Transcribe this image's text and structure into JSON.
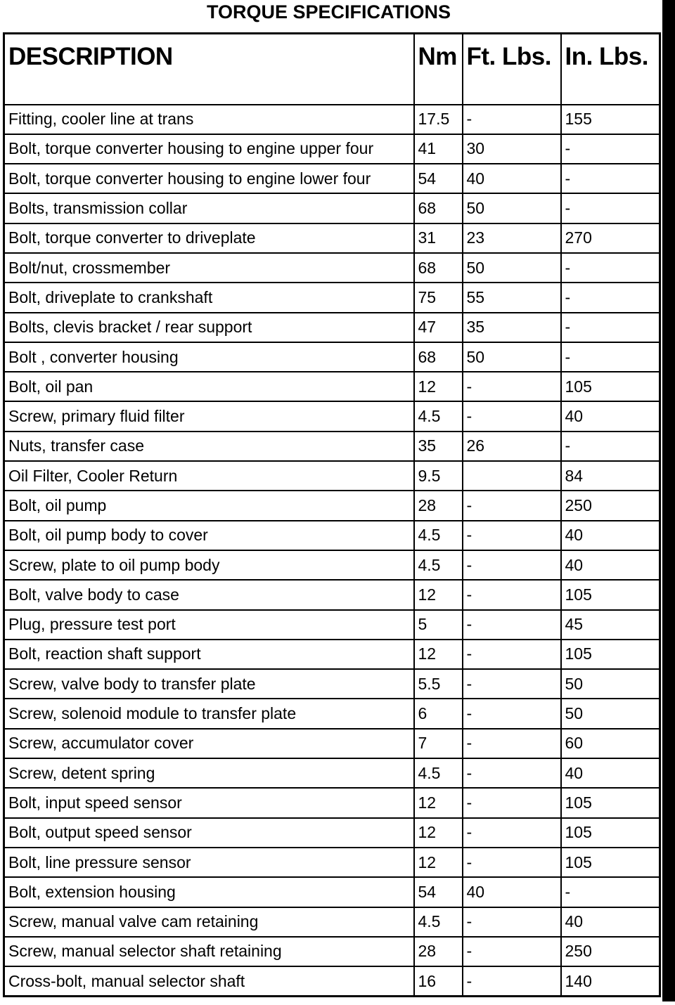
{
  "title": "TORQUE SPECIFICATIONS",
  "columns": [
    "DESCRIPTION",
    "Nm",
    "Ft. Lbs.",
    "In. Lbs."
  ],
  "rows": [
    [
      "Fitting, cooler line at trans",
      "17.5",
      "-",
      "155"
    ],
    [
      "Bolt, torque converter housing to engine upper four",
      "41",
      "30",
      "-"
    ],
    [
      "Bolt, torque converter housing to engine lower four",
      "54",
      "40",
      "-"
    ],
    [
      "Bolts, transmission collar",
      "68",
      "50",
      "-"
    ],
    [
      "Bolt, torque converter to driveplate",
      "31",
      "23",
      "270"
    ],
    [
      "Bolt/nut, crossmember",
      "68",
      "50",
      "-"
    ],
    [
      "Bolt, driveplate to crankshaft",
      "75",
      "55",
      "-"
    ],
    [
      "Bolts, clevis bracket / rear support",
      "47",
      "35",
      "-"
    ],
    [
      "Bolt , converter housing",
      "68",
      "50",
      "-"
    ],
    [
      "Bolt, oil pan",
      "12",
      "-",
      "105"
    ],
    [
      "Screw, primary fluid filter",
      "4.5",
      "-",
      "40"
    ],
    [
      "Nuts, transfer case",
      "35",
      "26",
      "-"
    ],
    [
      "Oil Filter, Cooler Return",
      "9.5",
      "",
      "84"
    ],
    [
      "Bolt, oil pump",
      "28",
      "-",
      "250"
    ],
    [
      "Bolt, oil pump body to cover",
      "4.5",
      "-",
      "40"
    ],
    [
      "Screw, plate to oil pump body",
      "4.5",
      "-",
      "40"
    ],
    [
      "Bolt, valve body to case",
      "12",
      "-",
      "105"
    ],
    [
      "Plug, pressure test port",
      "5",
      "-",
      "45"
    ],
    [
      "Bolt, reaction shaft support",
      "12",
      "-",
      "105"
    ],
    [
      "Screw, valve body to transfer plate",
      "5.5",
      "-",
      "50"
    ],
    [
      "Screw, solenoid module to transfer plate",
      "6",
      "-",
      "50"
    ],
    [
      "Screw, accumulator cover",
      "7",
      "-",
      "60"
    ],
    [
      "Screw, detent spring",
      "4.5",
      "-",
      "40"
    ],
    [
      "Bolt, input speed sensor",
      "12",
      "-",
      "105"
    ],
    [
      "Bolt, output speed sensor",
      "12",
      "-",
      "105"
    ],
    [
      "Bolt, line pressure sensor",
      "12",
      "-",
      "105"
    ],
    [
      "Bolt, extension housing",
      "54",
      "40",
      "-"
    ],
    [
      "Screw, manual valve cam retaining",
      "4.5",
      "-",
      "40"
    ],
    [
      "Screw, manual selector shaft retaining",
      "28",
      "-",
      "250"
    ],
    [
      "Cross-bolt, manual selector shaft",
      "16",
      "-",
      "140"
    ]
  ]
}
